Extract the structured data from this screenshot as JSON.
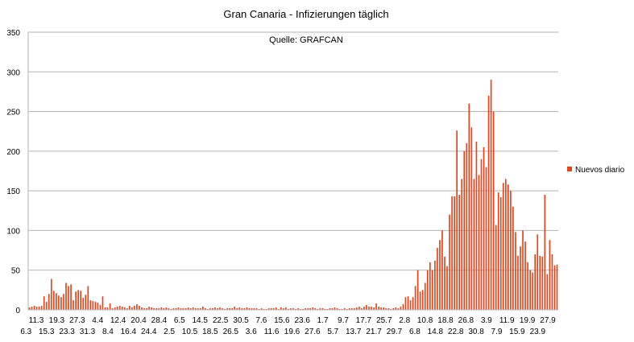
{
  "chart_data": {
    "type": "bar",
    "title": "Gran Canaria - Infizierungen täglich",
    "subtitle": "Quelle: GRAFCAN",
    "xlabel": "",
    "ylabel": "",
    "ylim": [
      0,
      350
    ],
    "yticks": [
      0,
      50,
      100,
      150,
      200,
      250,
      300,
      350
    ],
    "grid": true,
    "legend_position": "right",
    "series": [
      {
        "name": "Nuevos diario",
        "color": "#e8431a",
        "values": [
          3,
          4,
          5,
          4,
          4,
          5,
          17,
          10,
          20,
          39,
          24,
          21,
          18,
          16,
          20,
          34,
          30,
          32,
          12,
          23,
          25,
          24,
          15,
          19,
          30,
          12,
          11,
          10,
          9,
          6,
          17,
          3,
          3,
          8,
          2,
          3,
          4,
          5,
          4,
          3,
          2,
          5,
          3,
          5,
          7,
          5,
          3,
          2,
          2,
          4,
          3,
          2,
          2,
          2,
          3,
          2,
          3,
          2,
          1,
          2,
          2,
          3,
          2,
          2,
          2,
          3,
          2,
          3,
          2,
          2,
          2,
          4,
          2,
          1,
          2,
          2,
          3,
          2,
          3,
          2,
          1,
          2,
          2,
          2,
          4,
          2,
          3,
          2,
          2,
          3,
          2,
          2,
          2,
          2,
          1,
          2,
          1,
          1,
          2,
          2,
          2,
          3,
          1,
          3,
          2,
          3,
          1,
          2,
          2,
          1,
          2,
          1,
          1,
          2,
          2,
          2,
          3,
          2,
          1,
          2,
          2,
          1,
          1,
          2,
          2,
          3,
          2,
          1,
          1,
          2,
          1,
          2,
          2,
          2,
          3,
          4,
          2,
          4,
          6,
          4,
          4,
          3,
          8,
          4,
          3,
          3,
          2,
          2,
          1,
          2,
          3,
          2,
          4,
          7,
          16,
          17,
          12,
          16,
          30,
          50,
          23,
          25,
          34,
          50,
          60,
          50,
          62,
          78,
          88,
          100,
          67,
          55,
          120,
          143,
          143,
          226,
          145,
          165,
          200,
          210,
          260,
          230,
          165,
          212,
          170,
          190,
          205,
          180,
          270,
          290,
          250,
          107,
          148,
          142,
          160,
          165,
          158,
          150,
          130,
          98,
          68,
          80,
          100,
          86,
          60,
          50,
          47,
          70,
          95,
          68,
          67,
          145,
          45,
          88,
          70,
          56,
          57
        ]
      }
    ],
    "x_tick_labels_row1": [
      "11.3",
      "19.3",
      "27.3",
      "4.4",
      "12.4",
      "20.4",
      "28.4",
      "6.5",
      "14.5",
      "22.5",
      "30.5",
      "7.6",
      "15.6",
      "23.6",
      "1.7",
      "9.7",
      "17.7",
      "25.7",
      "2.8",
      "10.8",
      "18.8",
      "26.8",
      "3.9",
      "11.9",
      "19.9",
      "27.9"
    ],
    "x_tick_labels_row2": [
      "6.3",
      "15.3",
      "23.3",
      "31.3",
      "8.4",
      "16.4",
      "24.4",
      "2.5",
      "10.5",
      "18.5",
      "26.5",
      "3.6",
      "11.6",
      "19.6",
      "27.6",
      "5.7",
      "13.7",
      "21.7",
      "29.7",
      "6.8",
      "14.8",
      "22.8",
      "30.8",
      "7.9",
      "15.9",
      "23.9"
    ]
  }
}
